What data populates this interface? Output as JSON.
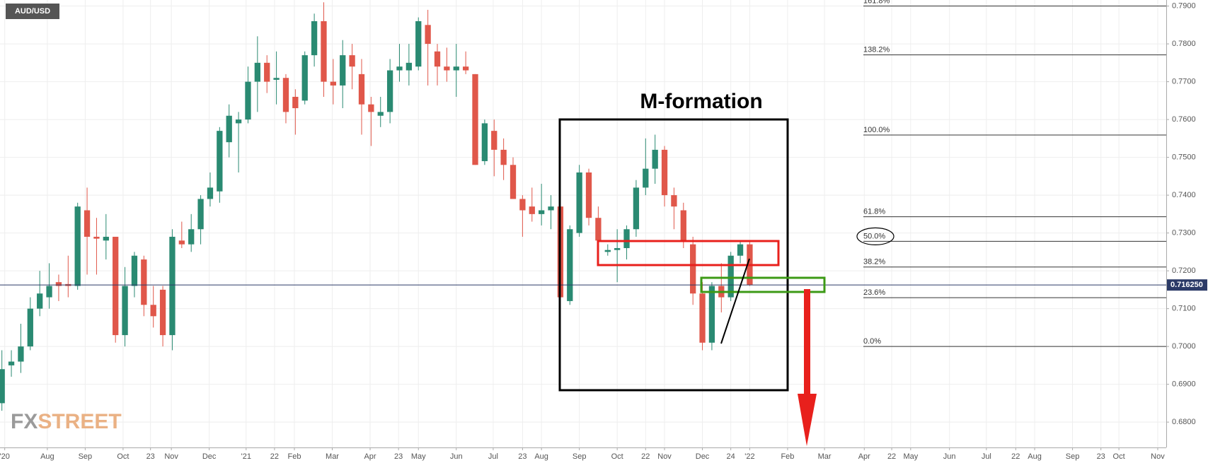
{
  "chart_data": {
    "type": "candlestick",
    "title": "AUD/USD",
    "annotation": "M-formation",
    "watermark": [
      "FX",
      "STREET"
    ],
    "up_color": "#2a8a72",
    "down_color": "#e0574a",
    "grid": true,
    "xlim": [
      -0.2,
      123
    ],
    "ylim": [
      0.6733,
      0.7916
    ],
    "yticks": [
      {
        "value": 0.68,
        "label": "0.6800"
      },
      {
        "value": 0.69,
        "label": "0.6900"
      },
      {
        "value": 0.7,
        "label": "0.7000"
      },
      {
        "value": 0.71,
        "label": "0.7100"
      },
      {
        "value": 0.72,
        "label": "0.7200"
      },
      {
        "value": 0.73,
        "label": "0.7300"
      },
      {
        "value": 0.74,
        "label": "0.7400"
      },
      {
        "value": 0.75,
        "label": "0.7500"
      },
      {
        "value": 0.76,
        "label": "0.7600"
      },
      {
        "value": 0.77,
        "label": "0.7700"
      },
      {
        "value": 0.78,
        "label": "0.7800"
      },
      {
        "value": 0.79,
        "label": "0.7900"
      }
    ],
    "xticks": [
      {
        "value": 0.3,
        "label": "'20"
      },
      {
        "value": 4.8,
        "label": "Aug"
      },
      {
        "value": 8.8,
        "label": "Sep"
      },
      {
        "value": 12.8,
        "label": "Oct"
      },
      {
        "value": 15.7,
        "label": "23"
      },
      {
        "value": 17.9,
        "label": "Nov"
      },
      {
        "value": 21.9,
        "label": "Dec"
      },
      {
        "value": 25.8,
        "label": "'21"
      },
      {
        "value": 28.8,
        "label": "22"
      },
      {
        "value": 30.9,
        "label": "Feb"
      },
      {
        "value": 34.9,
        "label": "Mar"
      },
      {
        "value": 38.9,
        "label": "Apr"
      },
      {
        "value": 41.9,
        "label": "23"
      },
      {
        "value": 44,
        "label": "May"
      },
      {
        "value": 48,
        "label": "Jun"
      },
      {
        "value": 51.9,
        "label": "Jul"
      },
      {
        "value": 55,
        "label": "23"
      },
      {
        "value": 57,
        "label": "Aug"
      },
      {
        "value": 61,
        "label": "Sep"
      },
      {
        "value": 65,
        "label": "Oct"
      },
      {
        "value": 68,
        "label": "22"
      },
      {
        "value": 70,
        "label": "Nov"
      },
      {
        "value": 74,
        "label": "Dec"
      },
      {
        "value": 77,
        "label": "24"
      },
      {
        "value": 79,
        "label": "'22"
      },
      {
        "value": 83,
        "label": "Feb"
      },
      {
        "value": 86.9,
        "label": "Mar"
      },
      {
        "value": 91.1,
        "label": "Apr"
      },
      {
        "value": 94,
        "label": "22"
      },
      {
        "value": 96,
        "label": "May"
      },
      {
        "value": 100.1,
        "label": "Jun"
      },
      {
        "value": 104,
        "label": "Jul"
      },
      {
        "value": 107.1,
        "label": "22"
      },
      {
        "value": 109.1,
        "label": "Aug"
      },
      {
        "value": 113.1,
        "label": "Sep"
      },
      {
        "value": 116.1,
        "label": "23"
      },
      {
        "value": 118,
        "label": "Oct"
      },
      {
        "value": 122.1,
        "label": "Nov"
      }
    ],
    "open": [
      0.685,
      0.695,
      0.696,
      0.7,
      0.71,
      0.713,
      0.717,
      0.7165,
      0.716,
      0.736,
      0.729,
      0.728,
      0.729,
      0.703,
      0.716,
      0.723,
      0.711,
      0.715,
      0.703,
      0.728,
      0.727,
      0.731,
      0.739,
      0.741,
      0.754,
      0.759,
      0.76,
      0.77,
      0.775,
      0.7705,
      0.771,
      0.766,
      0.765,
      0.777,
      0.786,
      0.77,
      0.769,
      0.777,
      0.772,
      0.764,
      0.761,
      0.762,
      0.773,
      0.773,
      0.774,
      0.785,
      0.778,
      0.774,
      0.773,
      0.774,
      0.772,
      0.749,
      0.757,
      0.752,
      0.748,
      0.739,
      0.737,
      0.735,
      0.736,
      0.737,
      0.712,
      0.73,
      0.746,
      0.734,
      0.725,
      0.7255,
      0.726,
      0.731,
      0.742,
      0.747,
      0.752,
      0.74,
      0.736,
      0.727,
      0.714,
      0.701,
      0.716,
      0.713,
      0.724,
      0.727
    ],
    "high": [
      0.699,
      0.699,
      0.706,
      0.713,
      0.72,
      0.722,
      0.719,
      0.724,
      0.738,
      0.742,
      0.734,
      0.735,
      0.729,
      0.721,
      0.725,
      0.724,
      0.716,
      0.716,
      0.731,
      0.733,
      0.735,
      0.74,
      0.746,
      0.758,
      0.764,
      0.762,
      0.774,
      0.782,
      0.777,
      0.778,
      0.772,
      0.768,
      0.778,
      0.788,
      0.791,
      0.776,
      0.781,
      0.78,
      0.776,
      0.766,
      0.766,
      0.776,
      0.78,
      0.78,
      0.787,
      0.789,
      0.78,
      0.779,
      0.78,
      0.778,
      0.772,
      0.76,
      0.76,
      0.755,
      0.75,
      0.74,
      0.742,
      0.743,
      0.74,
      0.737,
      0.732,
      0.748,
      0.747,
      0.737,
      0.727,
      0.731,
      0.732,
      0.744,
      0.755,
      0.756,
      0.753,
      0.742,
      0.738,
      0.729,
      0.717,
      0.717,
      0.722,
      0.725,
      0.728,
      0.728
    ],
    "low": [
      0.683,
      0.692,
      0.693,
      0.699,
      0.708,
      0.71,
      0.712,
      0.713,
      0.715,
      0.719,
      0.719,
      0.723,
      0.701,
      0.7,
      0.713,
      0.708,
      0.705,
      0.7,
      0.699,
      0.726,
      0.725,
      0.727,
      0.737,
      0.738,
      0.75,
      0.746,
      0.759,
      0.762,
      0.767,
      0.764,
      0.759,
      0.756,
      0.764,
      0.774,
      0.766,
      0.764,
      0.763,
      0.768,
      0.756,
      0.753,
      0.758,
      0.759,
      0.77,
      0.769,
      0.773,
      0.769,
      0.769,
      0.77,
      0.766,
      0.772,
      0.748,
      0.748,
      0.745,
      0.744,
      0.739,
      0.729,
      0.733,
      0.732,
      0.731,
      0.712,
      0.711,
      0.729,
      0.732,
      0.724,
      0.724,
      0.717,
      0.723,
      0.729,
      0.74,
      0.743,
      0.737,
      0.731,
      0.726,
      0.711,
      0.699,
      0.699,
      0.709,
      0.712,
      0.722,
      0.716
    ],
    "close": [
      0.694,
      0.696,
      0.7,
      0.71,
      0.714,
      0.716,
      0.716,
      0.716,
      0.737,
      0.729,
      0.7285,
      0.729,
      0.703,
      0.716,
      0.724,
      0.711,
      0.708,
      0.703,
      0.729,
      0.727,
      0.731,
      0.739,
      0.742,
      0.757,
      0.761,
      0.76,
      0.77,
      0.775,
      0.77,
      0.771,
      0.762,
      0.763,
      0.777,
      0.786,
      0.77,
      0.769,
      0.777,
      0.774,
      0.764,
      0.762,
      0.762,
      0.773,
      0.774,
      0.775,
      0.786,
      0.78,
      0.774,
      0.773,
      0.774,
      0.773,
      0.748,
      0.759,
      0.752,
      0.748,
      0.739,
      0.736,
      0.735,
      0.736,
      0.737,
      0.713,
      0.731,
      0.746,
      0.734,
      0.728,
      0.7255,
      0.726,
      0.731,
      0.742,
      0.747,
      0.752,
      0.74,
      0.737,
      0.728,
      0.714,
      0.701,
      0.716,
      0.713,
      0.724,
      0.727,
      0.7163
    ],
    "last_price": {
      "value": 0.71625,
      "label": "0.716250"
    },
    "fib_levels": [
      {
        "label": "161.8%",
        "value": 0.79
      },
      {
        "label": "138.2%",
        "value": 0.7771
      },
      {
        "label": "100.0%",
        "value": 0.7559
      },
      {
        "label": "61.8%",
        "value": 0.7343
      },
      {
        "label": "50.0%",
        "value": 0.7278
      },
      {
        "label": "38.2%",
        "value": 0.721
      },
      {
        "label": "23.6%",
        "value": 0.7129
      },
      {
        "label": "0.0%",
        "value": 0.7
      }
    ]
  }
}
